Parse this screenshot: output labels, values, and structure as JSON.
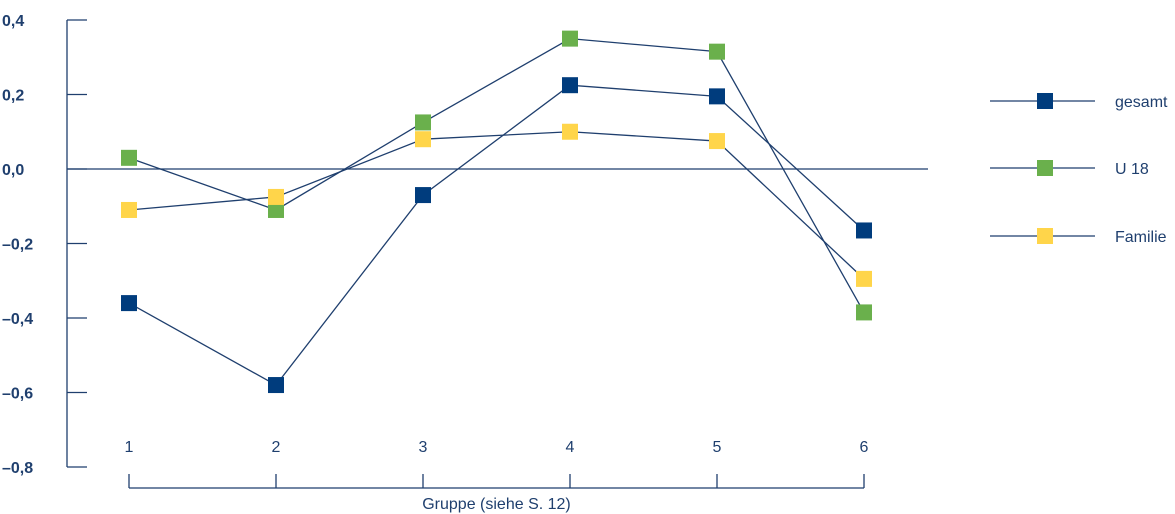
{
  "chart_data": {
    "type": "line",
    "x": [
      1,
      2,
      3,
      4,
      5,
      6
    ],
    "x_tick_labels": [
      "1",
      "2",
      "3",
      "4",
      "5",
      "6"
    ],
    "y_tick_labels": [
      "0,4",
      "0,2",
      "0,0",
      "–0,2",
      "–0,4",
      "–0,6",
      "–0,8"
    ],
    "y_tick_values": [
      0.4,
      0.2,
      0.0,
      -0.2,
      -0.4,
      -0.6,
      -0.8
    ],
    "ylim": [
      -0.8,
      0.4
    ],
    "xlabel": "Gruppe (siehe S. 12)",
    "ylabel": "",
    "title": "",
    "legend_position": "right",
    "grid": false,
    "series": [
      {
        "name": "gesamt",
        "color": "#003c7d",
        "values": [
          -0.36,
          -0.58,
          -0.07,
          0.225,
          0.195,
          -0.165
        ]
      },
      {
        "name": "U 18",
        "color": "#6ab04c",
        "values": [
          0.03,
          -0.11,
          0.125,
          0.35,
          0.315,
          -0.385
        ]
      },
      {
        "name": "Familie",
        "color": "#ffd54a",
        "values": [
          -0.11,
          -0.075,
          0.08,
          0.1,
          0.075,
          -0.295
        ]
      }
    ],
    "line_color": "#1f3f6e"
  }
}
